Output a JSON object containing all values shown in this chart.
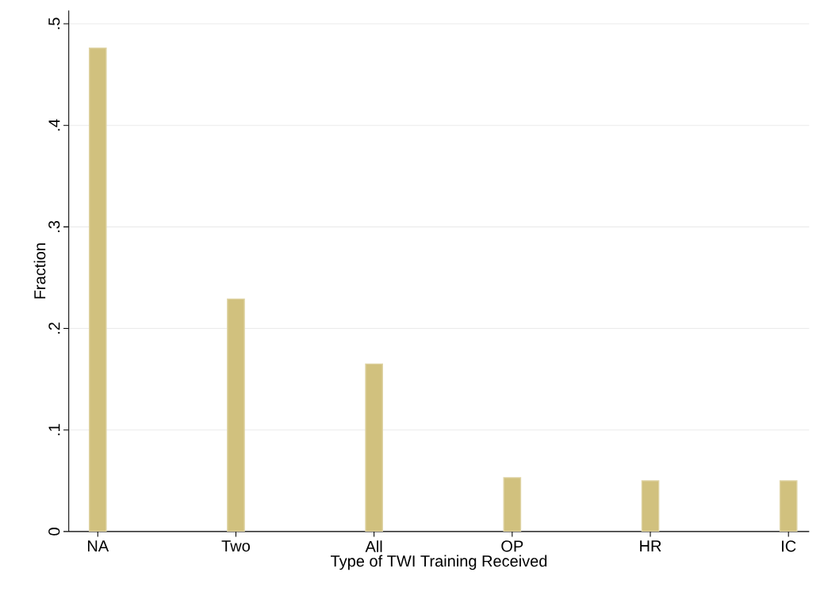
{
  "chart_data": {
    "type": "bar",
    "xlabel": "Type of TWI Training Received",
    "ylabel": "Fraction",
    "categories": [
      "NA",
      "Two",
      "All",
      "OP",
      "HR",
      "IC"
    ],
    "values": [
      0.476,
      0.229,
      0.165,
      0.053,
      0.05,
      0.05
    ],
    "color": "#d1c17e",
    "ylim": [
      0,
      0.513
    ],
    "yticks": [
      0,
      {
        "value": 0.1,
        "label": ".1"
      },
      {
        "value": 0.2,
        "label": ".2"
      },
      {
        "value": 0.3,
        "label": ".3"
      },
      {
        "value": 0.4,
        "label": ".4"
      },
      {
        "value": 0.5,
        "label": ".5"
      }
    ],
    "grid": "y"
  }
}
